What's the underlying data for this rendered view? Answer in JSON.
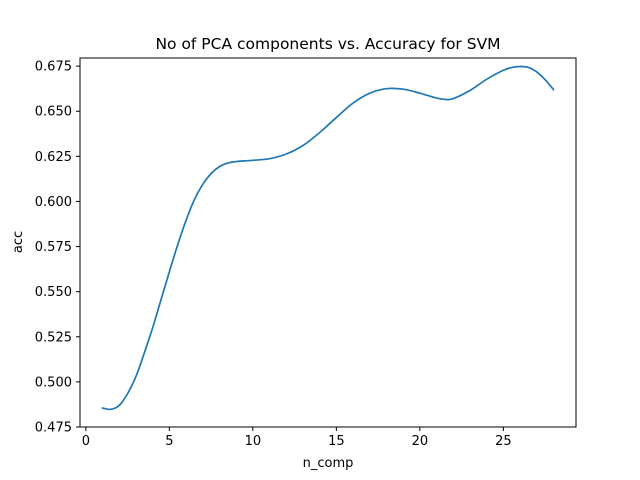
{
  "chart_data": {
    "type": "line",
    "title": "No of PCA components vs. Accuracy for SVM",
    "xlabel": "n_comp",
    "ylabel": "acc",
    "xlim": [
      -0.35,
      29.35
    ],
    "ylim": [
      0.475,
      0.6795
    ],
    "xticks": [
      0,
      5,
      10,
      15,
      20,
      25
    ],
    "yticks": [
      0.475,
      0.5,
      0.525,
      0.55,
      0.575,
      0.6,
      0.625,
      0.65,
      0.675
    ],
    "ytick_labels": [
      "0.475",
      "0.500",
      "0.525",
      "0.550",
      "0.575",
      "0.600",
      "0.625",
      "0.650",
      "0.675"
    ],
    "grid": false,
    "legend": "none",
    "series": [
      {
        "color": "#1f77b4",
        "x": [
          1,
          1.5,
          2,
          2.5,
          3,
          3.5,
          4,
          4.5,
          5,
          5.5,
          6,
          6.5,
          7,
          7.5,
          8,
          8.5,
          9,
          9.5,
          10,
          11,
          12,
          13,
          14,
          15,
          16,
          17,
          18,
          19,
          20,
          21,
          21.6,
          22,
          23,
          24,
          25,
          25.5,
          26,
          26.5,
          27,
          27.5,
          28
        ],
        "values": [
          0.4855,
          0.4848,
          0.487,
          0.4935,
          0.503,
          0.516,
          0.53,
          0.5455,
          0.561,
          0.576,
          0.5895,
          0.601,
          0.6095,
          0.6155,
          0.6193,
          0.6213,
          0.6221,
          0.6225,
          0.6228,
          0.6237,
          0.6263,
          0.631,
          0.6382,
          0.6465,
          0.6545,
          0.66,
          0.6625,
          0.6622,
          0.66,
          0.6573,
          0.6565,
          0.657,
          0.6615,
          0.6677,
          0.6727,
          0.6742,
          0.6748,
          0.6743,
          0.6718,
          0.6675,
          0.662
        ]
      }
    ]
  }
}
